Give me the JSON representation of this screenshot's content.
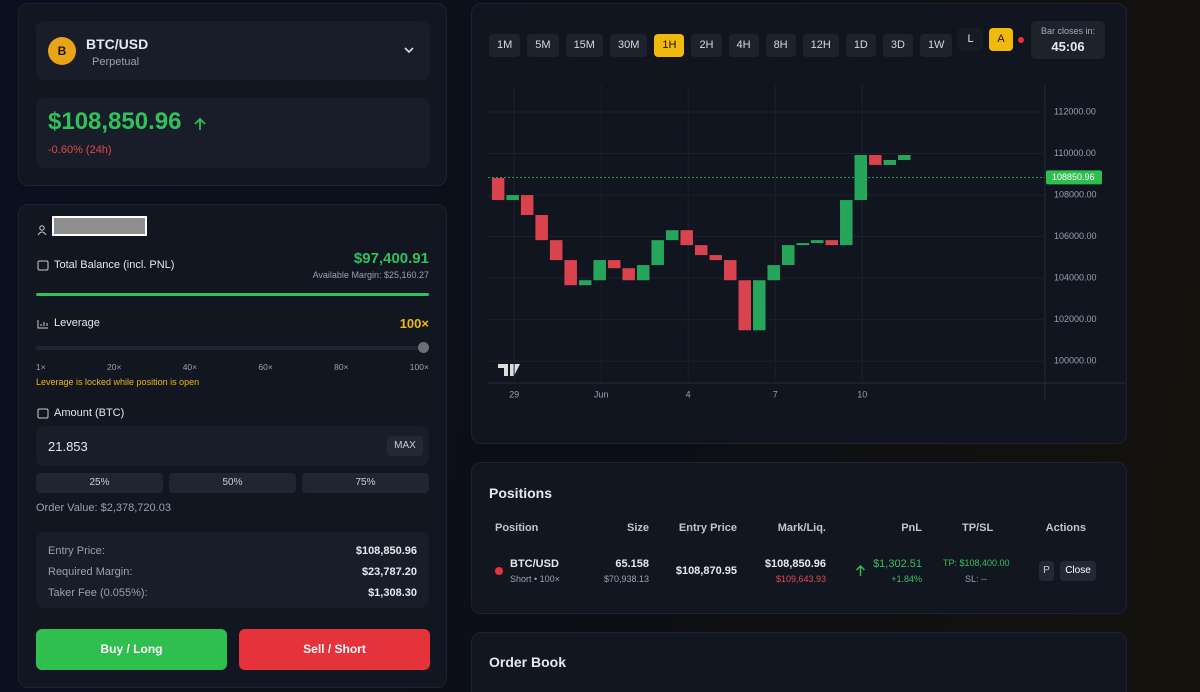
{
  "market": {
    "icon": "B",
    "symbol": "BTC/USD",
    "kind": "Perpetual"
  },
  "price": {
    "last": "$108,850.96",
    "change": "-0.60% (24h)"
  },
  "account": {
    "balance_label": "Total Balance (incl. PNL)",
    "balance": "$97,400.91",
    "available": "Available Margin: $25,160.27"
  },
  "leverage": {
    "label": "Leverage",
    "value": "100×",
    "scale": [
      "1×",
      "20×",
      "40×",
      "60×",
      "80×",
      "100×"
    ],
    "note": "Leverage is locked while position is open"
  },
  "amount": {
    "label": "Amount (BTC)",
    "input": "21.853",
    "max": "MAX",
    "presets": [
      "25%",
      "50%",
      "75%"
    ],
    "order_value": "Order Value: $2,378,720.03"
  },
  "summary": {
    "rows": [
      [
        "Entry Price:",
        "$108,850.96"
      ],
      [
        "Required Margin:",
        "$23,787.20"
      ],
      [
        "Taker Fee (0.055%):",
        "$1,308.30"
      ]
    ]
  },
  "actions": {
    "buy": "Buy / Long",
    "sell": "Sell / Short"
  },
  "timeframes": [
    "1M",
    "5M",
    "15M",
    "30M",
    "1H",
    "2H",
    "4H",
    "8H",
    "12H",
    "1D",
    "3D",
    "1W"
  ],
  "chart_toggles": [
    "L",
    "A"
  ],
  "bar_close": {
    "label": "Bar closes in:",
    "time": "45:06"
  },
  "chart_data": {
    "type": "candlestick",
    "x": [
      -0.8,
      -0.3,
      0.2,
      0.7,
      1.2,
      1.7,
      2.2,
      2.7,
      3.2,
      3.7,
      4.2,
      4.7,
      5.2,
      5.7,
      6.2,
      6.7,
      7.2,
      7.7,
      8.2,
      8.7,
      9.2,
      9.7,
      10.2,
      10.7,
      11.2,
      11.7,
      12.2,
      12.7,
      13.2,
      13.7
    ],
    "values": [
      108820,
      107760,
      108000,
      107040,
      105830,
      104870,
      103660,
      103900,
      104870,
      104480,
      103900,
      104630,
      105830,
      106310,
      105590,
      105110,
      104870,
      103900,
      101490,
      103900,
      104630,
      105590,
      105690,
      105830,
      105590,
      107760,
      109930,
      109450,
      109690,
      109930
    ],
    "current_price": 108850.96,
    "up_color": "#26a65b",
    "down_color": "#d9434e",
    "xlim": [
      -0.9,
      18.3
    ],
    "ylim": [
      99000,
      113300
    ],
    "xticks": [
      {
        "value": 0,
        "label": "29"
      },
      {
        "value": 3,
        "label": "Jun"
      },
      {
        "value": 6,
        "label": "4"
      },
      {
        "value": 9,
        "label": "7"
      },
      {
        "value": 12,
        "label": "10"
      }
    ],
    "yticks": [
      {
        "value": 100000,
        "label": "100000.00"
      },
      {
        "value": 102000,
        "label": "102000.00"
      },
      {
        "value": 104000,
        "label": "104000.00"
      },
      {
        "value": 106000,
        "label": "106000.00"
      },
      {
        "value": 108000,
        "label": "108000.00"
      },
      {
        "value": 110000,
        "label": "110000.00"
      },
      {
        "value": 112000,
        "label": "112000.00"
      }
    ],
    "grid": true
  },
  "positions": {
    "title": "Positions",
    "columns": [
      "Position",
      "Size",
      "Entry Price",
      "Mark/Liq.",
      "PnL",
      "TP/SL",
      "Actions"
    ],
    "rows": [
      {
        "symbol": "BTC/USD",
        "side": "Short • 100×",
        "size": "65.158",
        "size_usd": "$70,938.13",
        "entry": "$108,870.95",
        "mark": "$108,850.96",
        "liq": "$109,643.93",
        "pnl": "$1,302.51",
        "pnl_pct": "+1.84%",
        "tp": "TP: $108,400.00",
        "sl": "SL: --",
        "buttons": [
          "P",
          "Close"
        ]
      }
    ]
  },
  "order_book": {
    "title": "Order Book"
  }
}
